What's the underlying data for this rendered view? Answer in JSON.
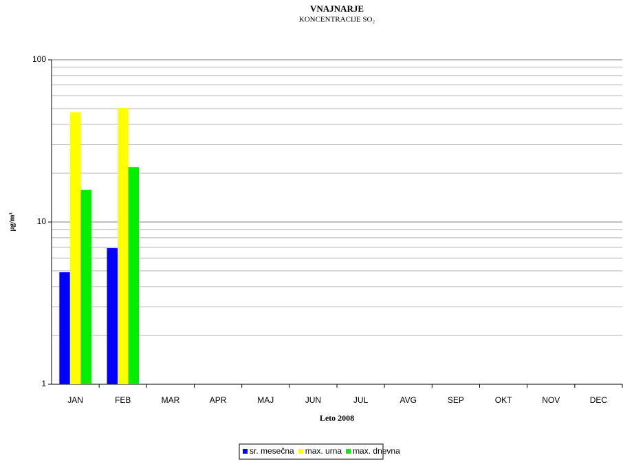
{
  "chart_data": {
    "type": "bar",
    "title": "VNAJNARJE",
    "subtitle": "KONCENTRACIJE SO₂",
    "y_label": "µg/m³",
    "x_label": "Leto 2008",
    "categories": [
      "JAN",
      "FEB",
      "MAR",
      "APR",
      "MAJ",
      "JUN",
      "JUL",
      "AVG",
      "SEP",
      "OKT",
      "NOV",
      "DEC"
    ],
    "series": [
      {
        "name": "sr. mesečna",
        "color": "#0000ff",
        "values": [
          4.9,
          6.9,
          null,
          null,
          null,
          null,
          null,
          null,
          null,
          null,
          null,
          null
        ]
      },
      {
        "name": "max. urna",
        "color": "#ffff00",
        "values": [
          47.5,
          50.5,
          null,
          null,
          null,
          null,
          null,
          null,
          null,
          null,
          null,
          null
        ]
      },
      {
        "name": "max. dnevna",
        "color": "#00ee00",
        "values": [
          15.8,
          21.8,
          null,
          null,
          null,
          null,
          null,
          null,
          null,
          null,
          null,
          null
        ]
      }
    ],
    "ylim": [
      1,
      100
    ],
    "yticks": [
      1,
      10,
      100
    ],
    "log_scale": true,
    "grid": true,
    "minor_grid": true,
    "legend": "bottom"
  }
}
